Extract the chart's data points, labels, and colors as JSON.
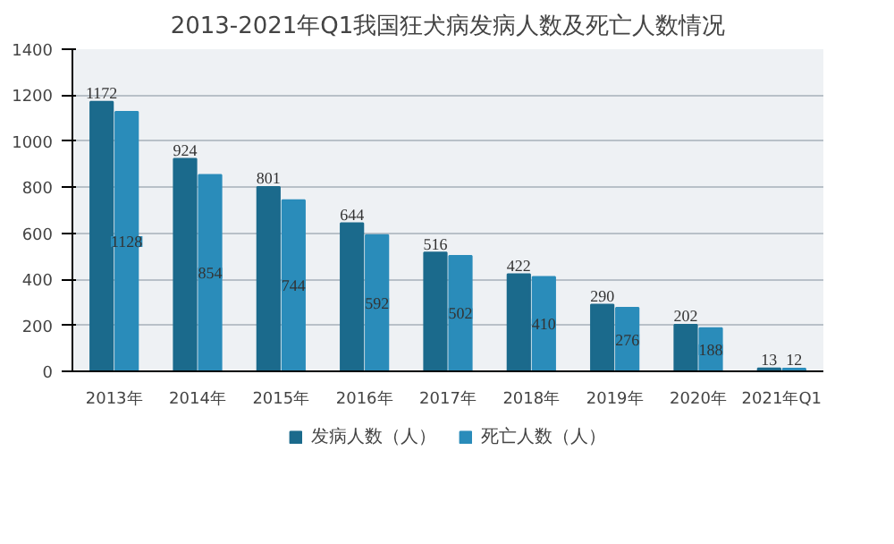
{
  "chart_data": {
    "type": "bar",
    "title": "2013-2021年Q1我国狂犬病发病人数及死亡人数情况",
    "categories": [
      "2013年",
      "2014年",
      "2015年",
      "2016年",
      "2017年",
      "2018年",
      "2019年",
      "2020年",
      "2021年Q1"
    ],
    "series": [
      {
        "name": "发病人数（人）",
        "color": "#1b6a8c",
        "values": [
          1172,
          924,
          801,
          644,
          516,
          422,
          290,
          202,
          13
        ]
      },
      {
        "name": "死亡人数（人）",
        "color": "#2a8cba",
        "values": [
          1128,
          854,
          744,
          592,
          502,
          410,
          276,
          188,
          12
        ]
      }
    ],
    "ylim": [
      0,
      1400
    ],
    "yticks": [
      0,
      200,
      400,
      600,
      800,
      1000,
      1200,
      1400
    ],
    "grid": "y",
    "legend": "bottom",
    "data_labels": true
  }
}
